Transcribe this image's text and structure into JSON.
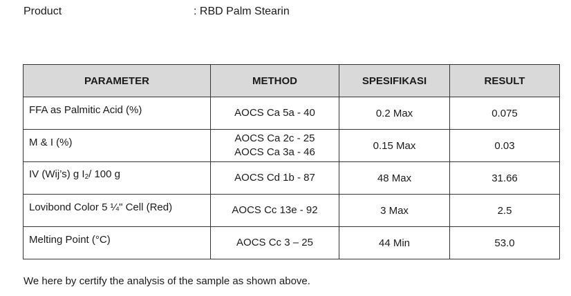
{
  "product": {
    "label": "Product",
    "value": ": RBD Palm Stearin"
  },
  "table": {
    "headers": [
      "PARAMETER",
      "METHOD",
      "SPESIFIKASI",
      "RESULT"
    ],
    "rows": [
      {
        "parameter": "FFA as Palmitic Acid (%)",
        "methods": [
          "AOCS Ca 5a - 40"
        ],
        "spec": "0.2 Max",
        "result": "0.075"
      },
      {
        "parameter": "M & I (%)",
        "methods": [
          "AOCS Ca 2c - 25",
          "AOCS Ca 3a - 46"
        ],
        "spec": "0.15 Max",
        "result": "0.03"
      },
      {
        "parameter_prefix": "IV (Wij’s) g I",
        "parameter_sub": "2",
        "parameter_suffix": "/ 100 g",
        "methods": [
          "AOCS Cd 1b - 87"
        ],
        "spec": "48 Max",
        "result": "31.66"
      },
      {
        "parameter": "Lovibond Color 5 ¼\" Cell (Red)",
        "methods": [
          "AOCS Cc 13e - 92"
        ],
        "spec": "3 Max",
        "result": "2.5"
      },
      {
        "parameter": "Melting Point (°C)",
        "methods": [
          "AOCS Cc 3 – 25"
        ],
        "spec": "44 Min",
        "result": "53.0"
      }
    ]
  },
  "certification_text": "We here by certify the analysis of the sample as shown above."
}
